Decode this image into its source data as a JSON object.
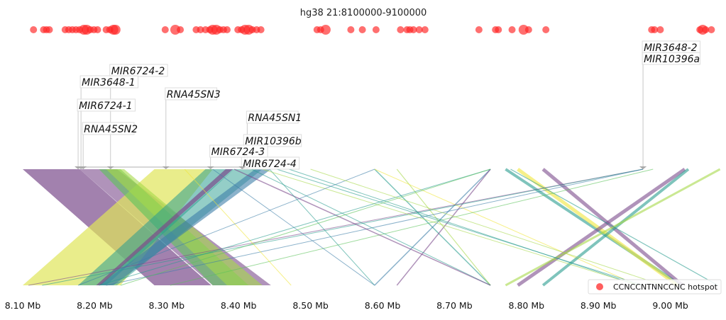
{
  "chart_data": {
    "type": "scatter",
    "title": "hg38 21:8100000-9100000",
    "xlabel": "",
    "xlim": [
      8.1,
      9.07
    ],
    "x_unit": "Mb",
    "x_ticks": [
      "8.10 Mb",
      "8.20 Mb",
      "8.30 Mb",
      "8.40 Mb",
      "8.50 Mb",
      "8.60 Mb",
      "8.70 Mb",
      "8.80 Mb",
      "8.90 Mb",
      "9.00 Mb"
    ],
    "x_tick_values": [
      8.1,
      8.2,
      8.3,
      8.4,
      8.5,
      8.6,
      8.7,
      8.8,
      8.9,
      9.0
    ],
    "legend": {
      "label": "CCNCCNTNNCCNC hotspot",
      "placement": "bottom-right",
      "color": "#ff4d4d"
    },
    "hotspots": [
      [
        8.115,
        1
      ],
      [
        8.129,
        1
      ],
      [
        8.133,
        1
      ],
      [
        8.137,
        1
      ],
      [
        8.159,
        1
      ],
      [
        8.164,
        1
      ],
      [
        8.169,
        1
      ],
      [
        8.174,
        1
      ],
      [
        8.179,
        1
      ],
      [
        8.185,
        2
      ],
      [
        8.189,
        2
      ],
      [
        8.194,
        1
      ],
      [
        8.199,
        1
      ],
      [
        8.204,
        1
      ],
      [
        8.216,
        1
      ],
      [
        8.221,
        1
      ],
      [
        8.226,
        2
      ],
      [
        8.229,
        2
      ],
      [
        8.298,
        1
      ],
      [
        8.312,
        2
      ],
      [
        8.319,
        1
      ],
      [
        8.341,
        1
      ],
      [
        8.347,
        1
      ],
      [
        8.354,
        1
      ],
      [
        8.36,
        1
      ],
      [
        8.364,
        2
      ],
      [
        8.369,
        2
      ],
      [
        8.374,
        1
      ],
      [
        8.379,
        1
      ],
      [
        8.384,
        1
      ],
      [
        8.399,
        1
      ],
      [
        8.404,
        1
      ],
      [
        8.409,
        2
      ],
      [
        8.414,
        2
      ],
      [
        8.419,
        1
      ],
      [
        8.425,
        1
      ],
      [
        8.431,
        1
      ],
      [
        8.509,
        1
      ],
      [
        8.514,
        1
      ],
      [
        8.521,
        2
      ],
      [
        8.556,
        1
      ],
      [
        8.572,
        1
      ],
      [
        8.591,
        1
      ],
      [
        8.625,
        1
      ],
      [
        8.634,
        1
      ],
      [
        8.638,
        1
      ],
      [
        8.643,
        1
      ],
      [
        8.651,
        1
      ],
      [
        8.659,
        1
      ],
      [
        8.734,
        1
      ],
      [
        8.757,
        1
      ],
      [
        8.761,
        1
      ],
      [
        8.78,
        1
      ],
      [
        8.796,
        2
      ],
      [
        8.803,
        1
      ],
      [
        8.827,
        1
      ],
      [
        8.974,
        1
      ],
      [
        8.978,
        1
      ],
      [
        8.986,
        1
      ],
      [
        9.041,
        1
      ],
      [
        9.045,
        2
      ],
      [
        9.049,
        1
      ],
      [
        9.057,
        1
      ]
    ],
    "genes": [
      {
        "name": "MIR6724-2",
        "pos": 8.222,
        "level": 9
      },
      {
        "name": "MIR3648-1",
        "pos": 8.181,
        "level": 8
      },
      {
        "name": "RNA45SN3",
        "pos": 8.299,
        "level": 7
      },
      {
        "name": "MIR6724-1",
        "pos": 8.177,
        "level": 6
      },
      {
        "name": "RNA45SN1",
        "pos": 8.412,
        "level": 5
      },
      {
        "name": "RNA45SN2",
        "pos": 8.184,
        "level": 4
      },
      {
        "name": "MIR10396b",
        "pos": 8.408,
        "level": 3
      },
      {
        "name": "MIR6724-3",
        "pos": 8.361,
        "level": 2
      },
      {
        "name": "MIR6724-4",
        "pos": 8.405,
        "level": 1
      },
      {
        "name": "MIR3648-2",
        "pos": 8.962,
        "level": 11
      },
      {
        "name": "MIR10396a",
        "pos": 8.962,
        "level": 10
      }
    ],
    "palette": [
      "#7b4b8c",
      "#e0e55a",
      "#5cc35a",
      "#2a9d8f",
      "#3e7fa8",
      "#a6d84a",
      "#f0e63a"
    ],
    "ribbons": [
      {
        "top": [
          8.1,
          8.179
        ],
        "bottom": [
          8.283,
          8.362
        ],
        "c": 0,
        "o": 0.7
      },
      {
        "top": [
          8.179,
          8.231
        ],
        "bottom": [
          8.364,
          8.445
        ],
        "c": 0,
        "o": 0.6
      },
      {
        "top": [
          8.283,
          8.364
        ],
        "bottom": [
          8.1,
          8.236
        ],
        "c": 1,
        "o": 0.7
      },
      {
        "top": [
          8.206,
          8.236
        ],
        "bottom": [
          8.364,
          8.414
        ],
        "c": 2,
        "o": 0.6
      },
      {
        "top": [
          8.216,
          8.241
        ],
        "bottom": [
          8.384,
          8.433
        ],
        "c": 5,
        "o": 0.6
      },
      {
        "top": [
          8.354,
          8.394
        ],
        "bottom": [
          8.177,
          8.216
        ],
        "c": 3,
        "o": 0.55
      },
      {
        "top": [
          8.394,
          8.433
        ],
        "bottom": [
          8.206,
          8.231
        ],
        "c": 3,
        "o": 0.5
      },
      {
        "top": [
          8.423,
          8.445
        ],
        "bottom": [
          8.206,
          8.226
        ],
        "c": 4,
        "o": 0.6
      },
      {
        "top": [
          8.382,
          8.392
        ],
        "bottom": [
          8.202,
          8.208
        ],
        "c": 0,
        "o": 0.7
      }
    ],
    "links": [
      {
        "top": 8.589,
        "bottom": 8.75,
        "c": 3,
        "w": 1.5
      },
      {
        "top": 8.75,
        "bottom": 8.589,
        "c": 4,
        "w": 1.5
      },
      {
        "top": 8.75,
        "bottom": 8.62,
        "c": 0,
        "w": 1.5
      },
      {
        "top": 8.62,
        "bottom": 8.75,
        "c": 5,
        "w": 1.2
      },
      {
        "top": 8.589,
        "bottom": 8.955,
        "c": 6,
        "w": 1
      },
      {
        "top": 8.771,
        "bottom": 9.015,
        "c": 3,
        "w": 4
      },
      {
        "top": 8.788,
        "bottom": 9.01,
        "c": 6,
        "w": 5
      },
      {
        "top": 8.823,
        "bottom": 9.017,
        "c": 0,
        "w": 5
      },
      {
        "top": 9.02,
        "bottom": 8.788,
        "c": 0,
        "w": 5
      },
      {
        "top": 9.025,
        "bottom": 8.823,
        "c": 3,
        "w": 4
      },
      {
        "top": 9.069,
        "bottom": 8.771,
        "c": 5,
        "w": 3
      },
      {
        "top": 8.778,
        "bottom": 9.066,
        "c": 3,
        "w": 1.2
      },
      {
        "top": 8.962,
        "bottom": 8.108,
        "c": 0,
        "w": 1
      },
      {
        "top": 8.962,
        "bottom": 8.127,
        "c": 3,
        "w": 1
      },
      {
        "top": 8.962,
        "bottom": 8.216,
        "c": 4,
        "w": 1
      },
      {
        "top": 8.976,
        "bottom": 8.305,
        "c": 2,
        "w": 1
      },
      {
        "top": 8.418,
        "bottom": 8.75,
        "c": 3,
        "w": 1
      },
      {
        "top": 8.394,
        "bottom": 8.75,
        "c": 0,
        "w": 1.5
      },
      {
        "top": 8.443,
        "bottom": 8.589,
        "c": 3,
        "w": 1
      },
      {
        "top": 8.364,
        "bottom": 8.589,
        "c": 4,
        "w": 1
      },
      {
        "top": 8.433,
        "bottom": 8.955,
        "c": 5,
        "w": 1
      },
      {
        "top": 8.453,
        "bottom": 8.962,
        "c": 3,
        "w": 1
      },
      {
        "top": 8.325,
        "bottom": 8.473,
        "c": 6,
        "w": 1
      },
      {
        "top": 8.589,
        "bottom": 8.177,
        "c": 4,
        "w": 1
      },
      {
        "top": 8.75,
        "bottom": 8.206,
        "c": 3,
        "w": 1
      },
      {
        "top": 8.75,
        "bottom": 8.236,
        "c": 2,
        "w": 1
      },
      {
        "top": 8.47,
        "bottom": 8.955,
        "c": 3,
        "w": 1
      },
      {
        "top": 8.5,
        "bottom": 8.99,
        "c": 5,
        "w": 1
      }
    ]
  }
}
